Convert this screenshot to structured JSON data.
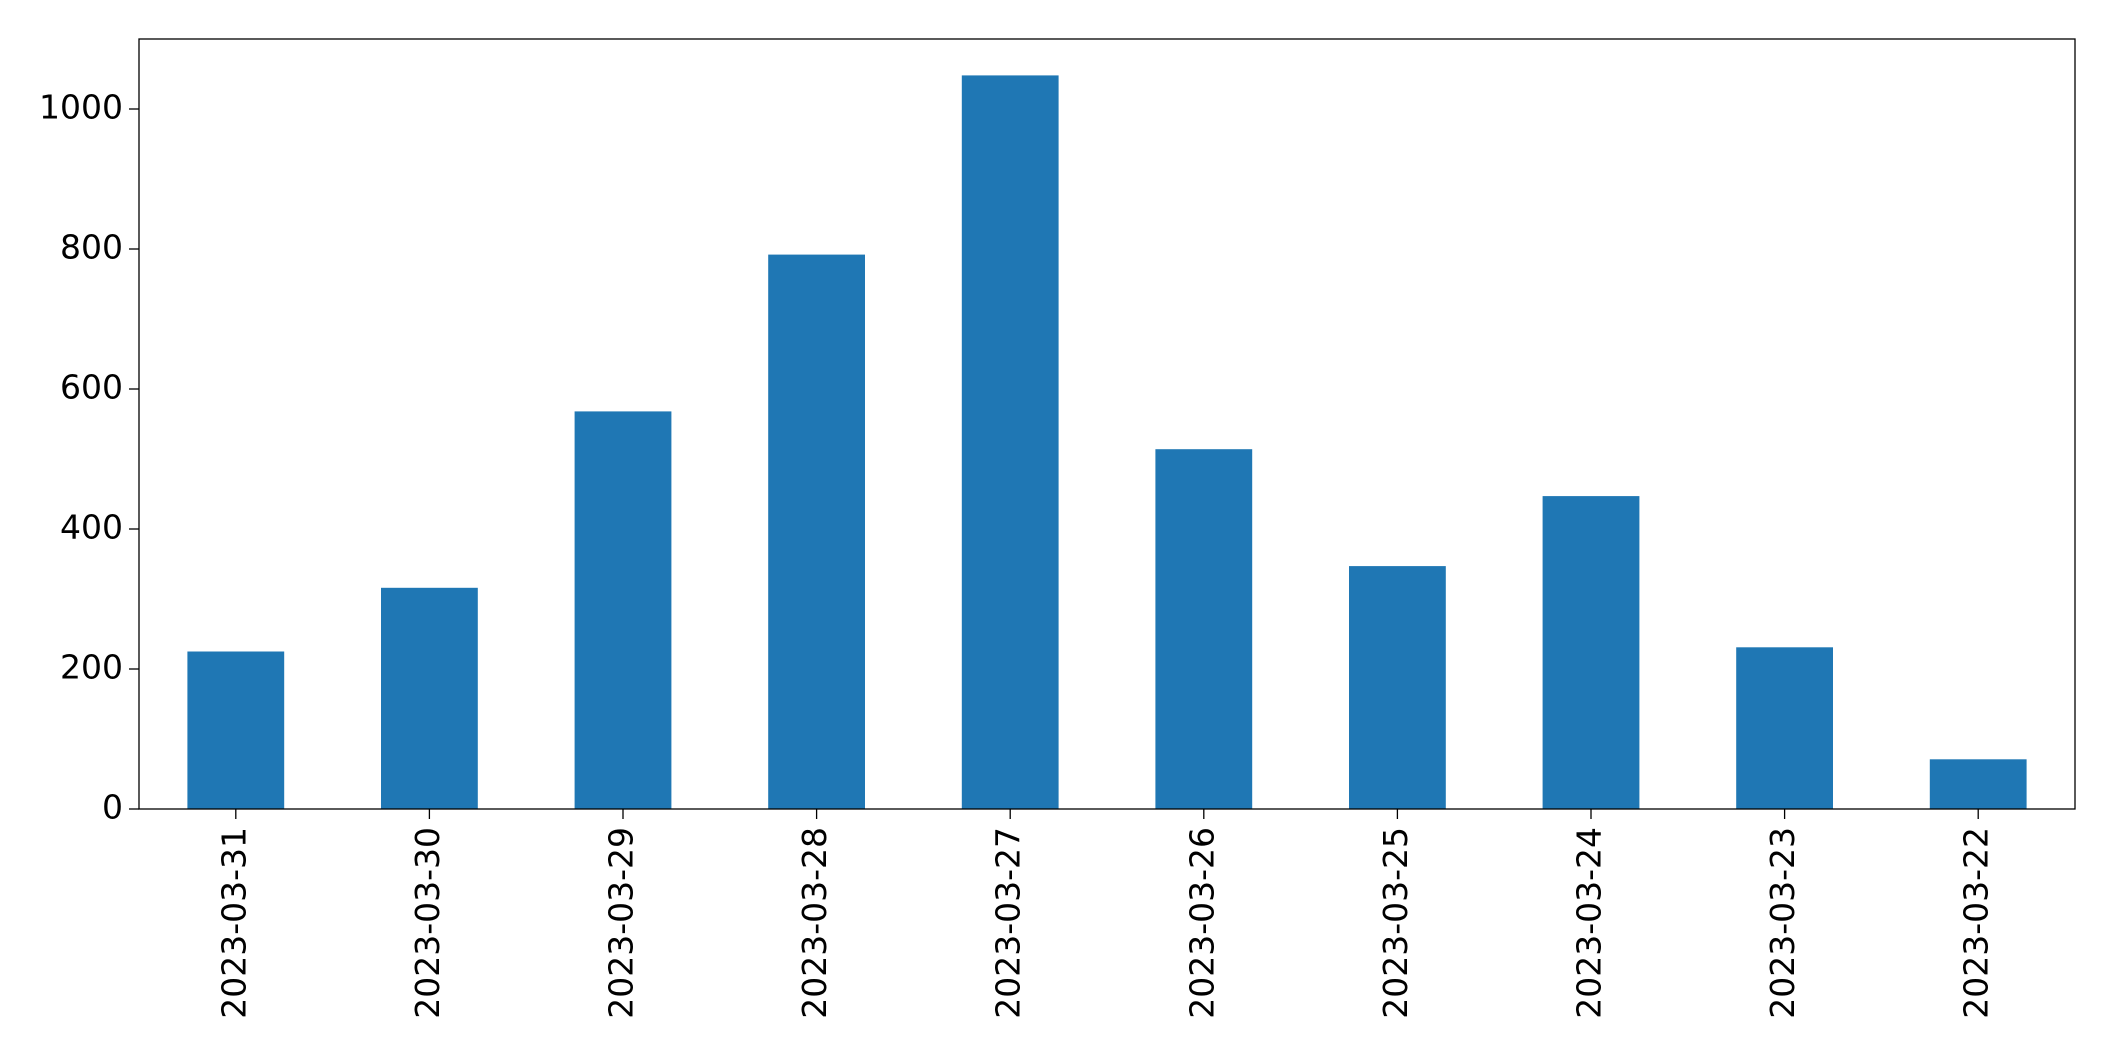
{
  "chart_data": {
    "type": "bar",
    "categories": [
      "2023-03-31",
      "2023-03-30",
      "2023-03-29",
      "2023-03-28",
      "2023-03-27",
      "2023-03-26",
      "2023-03-25",
      "2023-03-24",
      "2023-03-23",
      "2023-03-22"
    ],
    "values": [
      225,
      316,
      568,
      792,
      1048,
      514,
      347,
      447,
      231,
      71
    ],
    "color": "#1f77b4",
    "ylim": [
      0,
      1100
    ],
    "yticks": [
      0,
      200,
      400,
      600,
      800,
      1000
    ],
    "grid": false
  }
}
